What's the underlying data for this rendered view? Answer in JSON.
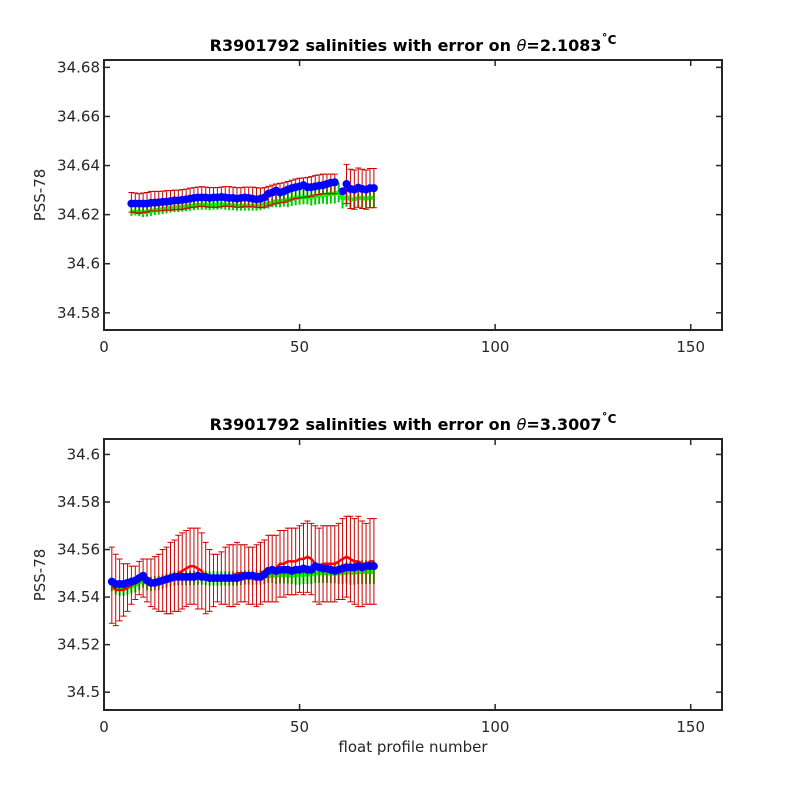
{
  "chart_data": [
    {
      "type": "line",
      "title": "R3901792 salinities with error on θ=2.1083˚C",
      "title_parts": {
        "prefix": "R3901792 salinities with error on ",
        "symbol": "θ",
        "suffix": "=2.1083",
        "unit": "˚C"
      },
      "xlabel": "",
      "ylabel": "PSS-78",
      "xlim": [
        0,
        158
      ],
      "ylim": [
        34.573,
        34.683
      ],
      "xticks": [
        0,
        50,
        100,
        150
      ],
      "yticks": [
        34.58,
        34.6,
        34.62,
        34.64,
        34.66,
        34.68
      ],
      "ytick_labels": [
        "34.58",
        "34.6",
        "34.62",
        "34.64",
        "34.66",
        "34.68"
      ],
      "grid": false,
      "x": [
        7,
        8,
        9,
        10,
        11,
        12,
        13,
        14,
        15,
        16,
        17,
        18,
        19,
        20,
        21,
        22,
        23,
        24,
        25,
        26,
        27,
        28,
        29,
        30,
        31,
        32,
        33,
        34,
        35,
        36,
        37,
        38,
        39,
        40,
        41,
        42,
        43,
        44,
        45,
        46,
        47,
        48,
        49,
        50,
        51,
        52,
        53,
        54,
        55,
        56,
        57,
        58,
        59,
        60,
        61,
        62,
        63,
        64,
        65,
        66,
        67,
        68,
        69
      ],
      "series": [
        {
          "role": "float_salinity",
          "color": "#0000ff",
          "values": [
            34.6245,
            34.6245,
            34.6245,
            34.6245,
            34.6245,
            34.6248,
            34.6249,
            34.625,
            34.6252,
            34.6253,
            34.6255,
            34.6258,
            34.6258,
            34.626,
            34.6262,
            34.6265,
            34.6268,
            34.627,
            34.627,
            34.627,
            34.6268,
            34.627,
            34.627,
            34.6272,
            34.627,
            34.6268,
            34.6268,
            34.6265,
            34.6268,
            34.627,
            34.6268,
            34.6265,
            34.6262,
            34.6265,
            34.627,
            34.6285,
            34.629,
            34.6298,
            34.629,
            34.6295,
            34.6302,
            34.6308,
            34.6312,
            34.6315,
            34.632,
            34.6312,
            34.6312,
            34.6315,
            34.6318,
            34.632,
            34.6325,
            34.633,
            34.6332,
            null,
            34.6295,
            34.6325,
            34.6305,
            34.6302,
            34.631,
            34.6305,
            34.6302,
            34.6308,
            34.6308
          ]
        },
        {
          "role": "mapped_salinity",
          "color": "#ff0000",
          "values": [
            34.625,
            34.6248,
            34.6245,
            34.6248,
            34.625,
            34.6255,
            34.6255,
            34.6255,
            34.6256,
            34.6258,
            34.6258,
            34.626,
            34.626,
            34.6262,
            34.6264,
            34.6268,
            34.627,
            34.6272,
            34.6274,
            34.6272,
            34.627,
            34.627,
            34.627,
            34.6272,
            34.6274,
            34.6274,
            34.6272,
            34.627,
            34.627,
            34.6272,
            34.6272,
            34.6272,
            34.627,
            34.6268,
            34.627,
            34.6275,
            34.628,
            34.6285,
            34.6288,
            34.629,
            34.6295,
            34.63,
            34.6305,
            34.6308,
            34.631,
            34.6312,
            34.6315,
            34.632,
            34.6322,
            34.6325,
            34.6325,
            34.6325,
            34.6325,
            null,
            null,
            null,
            null,
            null,
            null,
            null,
            null,
            null,
            null
          ]
        },
        {
          "role": "mapped_error",
          "color": "#cc0000",
          "values": [
            0.004,
            0.004,
            0.004,
            0.004,
            0.004,
            0.004,
            0.004,
            0.004,
            0.004,
            0.004,
            0.004,
            0.004,
            0.004,
            0.004,
            0.004,
            0.004,
            0.004,
            0.004,
            0.004,
            0.004,
            0.004,
            0.004,
            0.004,
            0.004,
            0.004,
            0.004,
            0.004,
            0.004,
            0.004,
            0.004,
            0.004,
            0.004,
            0.004,
            0.004,
            0.004,
            0.004,
            0.004,
            0.004,
            0.004,
            0.004,
            0.004,
            0.004,
            0.004,
            0.004,
            0.004,
            0.004,
            0.004,
            0.004,
            0.004,
            0.004,
            0.004,
            0.004,
            0.004,
            null,
            null,
            0.008,
            0.008,
            0.008,
            0.008,
            0.008,
            0.008,
            0.008,
            0.008
          ]
        },
        {
          "role": "calibrated_salinity",
          "color": "#00ff00",
          "values": [
            34.621,
            34.6212,
            34.6212,
            34.621,
            34.6212,
            34.6215,
            34.6218,
            34.622,
            34.6222,
            34.6225,
            34.6228,
            34.623,
            34.623,
            34.6232,
            34.6234,
            34.6236,
            34.6238,
            34.624,
            34.624,
            34.624,
            34.6238,
            34.624,
            34.624,
            34.6242,
            34.624,
            34.6238,
            34.6238,
            34.6236,
            34.6236,
            34.6236,
            34.6236,
            34.6236,
            34.6236,
            34.6238,
            34.6242,
            34.6245,
            34.625,
            34.6255,
            34.6255,
            34.6258,
            34.626,
            34.6265,
            34.6268,
            34.627,
            34.6272,
            34.6272,
            34.6272,
            34.6275,
            34.6278,
            34.628,
            34.6282,
            34.6285,
            34.6285,
            34.629,
            34.6265,
            34.6272,
            34.6262,
            34.6262,
            34.6268,
            34.6268,
            34.6265,
            34.6268,
            34.6268
          ]
        },
        {
          "role": "calibrated_error",
          "color": "#00cc00",
          "values": [
            0.0015,
            0.0015,
            0.0018,
            0.002,
            0.002,
            0.002,
            0.002,
            0.002,
            0.002,
            0.002,
            0.002,
            0.002,
            0.002,
            0.002,
            0.002,
            0.002,
            0.002,
            0.002,
            0.002,
            0.002,
            0.002,
            0.002,
            0.002,
            0.002,
            0.002,
            0.002,
            0.002,
            0.002,
            0.002,
            0.002,
            0.002,
            0.002,
            0.002,
            0.002,
            0.002,
            0.002,
            0.002,
            0.0025,
            0.0025,
            0.0025,
            0.003,
            0.003,
            0.003,
            0.003,
            0.003,
            0.003,
            0.0035,
            0.0035,
            0.0035,
            0.0035,
            0.004,
            0.004,
            0.004,
            0.004,
            0.004,
            0.004,
            0.004,
            0.004,
            0.004,
            0.004,
            0.004,
            0.004,
            0.004
          ]
        }
      ]
    },
    {
      "type": "line",
      "title": "R3901792 salinities with error on θ=3.3007˚C",
      "title_parts": {
        "prefix": "R3901792 salinities with error on ",
        "symbol": "θ",
        "suffix": "=3.3007",
        "unit": "˚C"
      },
      "xlabel": "float profile number",
      "ylabel": "PSS-78",
      "xlim": [
        0,
        158
      ],
      "ylim": [
        34.4925,
        34.6065
      ],
      "xticks": [
        0,
        50,
        100,
        150
      ],
      "yticks": [
        34.5,
        34.52,
        34.54,
        34.56,
        34.58,
        34.6
      ],
      "ytick_labels": [
        "34.5",
        "34.52",
        "34.54",
        "34.56",
        "34.58",
        "34.6"
      ],
      "grid": false,
      "x": [
        2,
        3,
        4,
        5,
        6,
        7,
        8,
        9,
        10,
        11,
        12,
        13,
        14,
        15,
        16,
        17,
        18,
        19,
        20,
        21,
        22,
        23,
        24,
        25,
        26,
        27,
        28,
        29,
        30,
        31,
        32,
        33,
        34,
        35,
        36,
        37,
        38,
        39,
        40,
        41,
        42,
        43,
        44,
        45,
        46,
        47,
        48,
        49,
        50,
        51,
        52,
        53,
        54,
        55,
        56,
        57,
        58,
        59,
        60,
        61,
        62,
        63,
        64,
        65,
        66,
        67,
        68,
        69
      ],
      "series": [
        {
          "role": "float_salinity",
          "color": "#0000ff",
          "values": [
            34.5465,
            34.5455,
            34.5455,
            34.5455,
            34.546,
            34.5465,
            34.547,
            34.548,
            34.549,
            34.547,
            34.546,
            34.546,
            34.5465,
            34.547,
            34.5475,
            34.548,
            34.5485,
            34.5485,
            34.5485,
            34.5485,
            34.5485,
            34.5485,
            34.549,
            34.5485,
            34.5485,
            34.548,
            34.548,
            34.548,
            34.548,
            34.548,
            34.548,
            34.548,
            34.548,
            34.5485,
            34.549,
            34.549,
            34.549,
            34.5485,
            34.5485,
            34.5495,
            34.551,
            34.5515,
            34.551,
            34.5515,
            34.5515,
            34.5515,
            34.551,
            34.5515,
            34.5515,
            34.552,
            34.5515,
            34.5515,
            34.553,
            34.5525,
            34.552,
            34.552,
            34.5515,
            34.551,
            34.5515,
            34.552,
            34.5525,
            34.5525,
            34.5525,
            34.553,
            34.5525,
            34.553,
            34.553,
            34.553
          ]
        },
        {
          "role": "mapped_salinity",
          "color": "#ff0000",
          "values": [
            34.545,
            34.543,
            34.543,
            34.543,
            34.544,
            34.545,
            34.546,
            34.548,
            34.548,
            34.547,
            34.546,
            34.546,
            34.546,
            34.547,
            34.547,
            34.548,
            34.549,
            34.55,
            34.551,
            34.552,
            34.553,
            34.553,
            34.552,
            34.551,
            34.548,
            34.547,
            34.547,
            34.548,
            34.548,
            34.549,
            34.549,
            34.549,
            34.55,
            34.55,
            34.55,
            34.549,
            34.549,
            34.549,
            34.55,
            34.551,
            34.552,
            34.552,
            34.552,
            34.554,
            34.554,
            34.555,
            34.555,
            34.555,
            34.556,
            34.556,
            34.557,
            34.556,
            34.554,
            34.553,
            34.554,
            34.554,
            34.554,
            34.554,
            34.555,
            34.556,
            34.557,
            34.556,
            34.555,
            34.555,
            34.554,
            34.554,
            34.555,
            34.555
          ]
        },
        {
          "role": "mapped_error",
          "color": "#cc0000",
          "values": [
            0.016,
            0.015,
            0.013,
            0.011,
            0.01,
            0.008,
            0.007,
            0.007,
            0.008,
            0.009,
            0.01,
            0.011,
            0.012,
            0.013,
            0.014,
            0.015,
            0.015,
            0.016,
            0.016,
            0.016,
            0.016,
            0.016,
            0.017,
            0.016,
            0.015,
            0.013,
            0.011,
            0.01,
            0.011,
            0.012,
            0.013,
            0.013,
            0.013,
            0.012,
            0.012,
            0.012,
            0.012,
            0.013,
            0.013,
            0.013,
            0.014,
            0.014,
            0.014,
            0.014,
            0.014,
            0.014,
            0.014,
            0.014,
            0.014,
            0.015,
            0.015,
            0.015,
            0.016,
            0.016,
            0.016,
            0.016,
            0.016,
            0.016,
            0.016,
            0.017,
            0.017,
            0.018,
            0.018,
            0.019,
            0.018,
            0.017,
            0.018,
            0.018
          ]
        },
        {
          "role": "calibrated_salinity",
          "color": "#00ff00",
          "values": [
            34.5445,
            34.5435,
            34.5435,
            34.5435,
            34.544,
            34.5445,
            34.545,
            34.546,
            34.547,
            34.5458,
            34.5455,
            34.5458,
            34.546,
            34.5465,
            34.547,
            34.5475,
            34.5478,
            34.548,
            34.548,
            34.548,
            34.548,
            34.548,
            34.5482,
            34.5482,
            34.548,
            34.5478,
            34.5478,
            34.5478,
            34.5478,
            34.5478,
            34.5478,
            34.5478,
            34.5478,
            34.548,
            34.5482,
            34.5482,
            34.5482,
            34.5482,
            34.5482,
            34.5485,
            34.549,
            34.549,
            34.549,
            34.5492,
            34.5492,
            34.5492,
            34.549,
            34.5492,
            34.5492,
            34.5495,
            34.5495,
            34.5495,
            34.55,
            34.55,
            34.55,
            34.55,
            34.5498,
            34.5498,
            34.55,
            34.55,
            34.5502,
            34.5502,
            34.5502,
            34.5505,
            34.5505,
            34.5505,
            34.5505,
            34.5505
          ]
        },
        {
          "role": "calibrated_error",
          "color": "#00cc00",
          "values": [
            0.002,
            0.0025,
            0.003,
            0.003,
            0.003,
            0.003,
            0.003,
            0.003,
            0.003,
            0.003,
            0.003,
            0.003,
            0.003,
            0.003,
            0.003,
            0.003,
            0.003,
            0.003,
            0.003,
            0.003,
            0.003,
            0.003,
            0.003,
            0.003,
            0.003,
            0.003,
            0.003,
            0.003,
            0.003,
            0.003,
            0.003,
            0.003,
            0.003,
            0.003,
            0.003,
            0.003,
            0.003,
            0.003,
            0.003,
            0.003,
            0.003,
            0.003,
            0.0035,
            0.0035,
            0.0035,
            0.0035,
            0.0035,
            0.004,
            0.004,
            0.004,
            0.004,
            0.004,
            0.004,
            0.004,
            0.004,
            0.004,
            0.004,
            0.004,
            0.0045,
            0.0045,
            0.0045,
            0.005,
            0.005,
            0.005,
            0.005,
            0.005,
            0.005,
            0.005
          ]
        }
      ]
    }
  ]
}
